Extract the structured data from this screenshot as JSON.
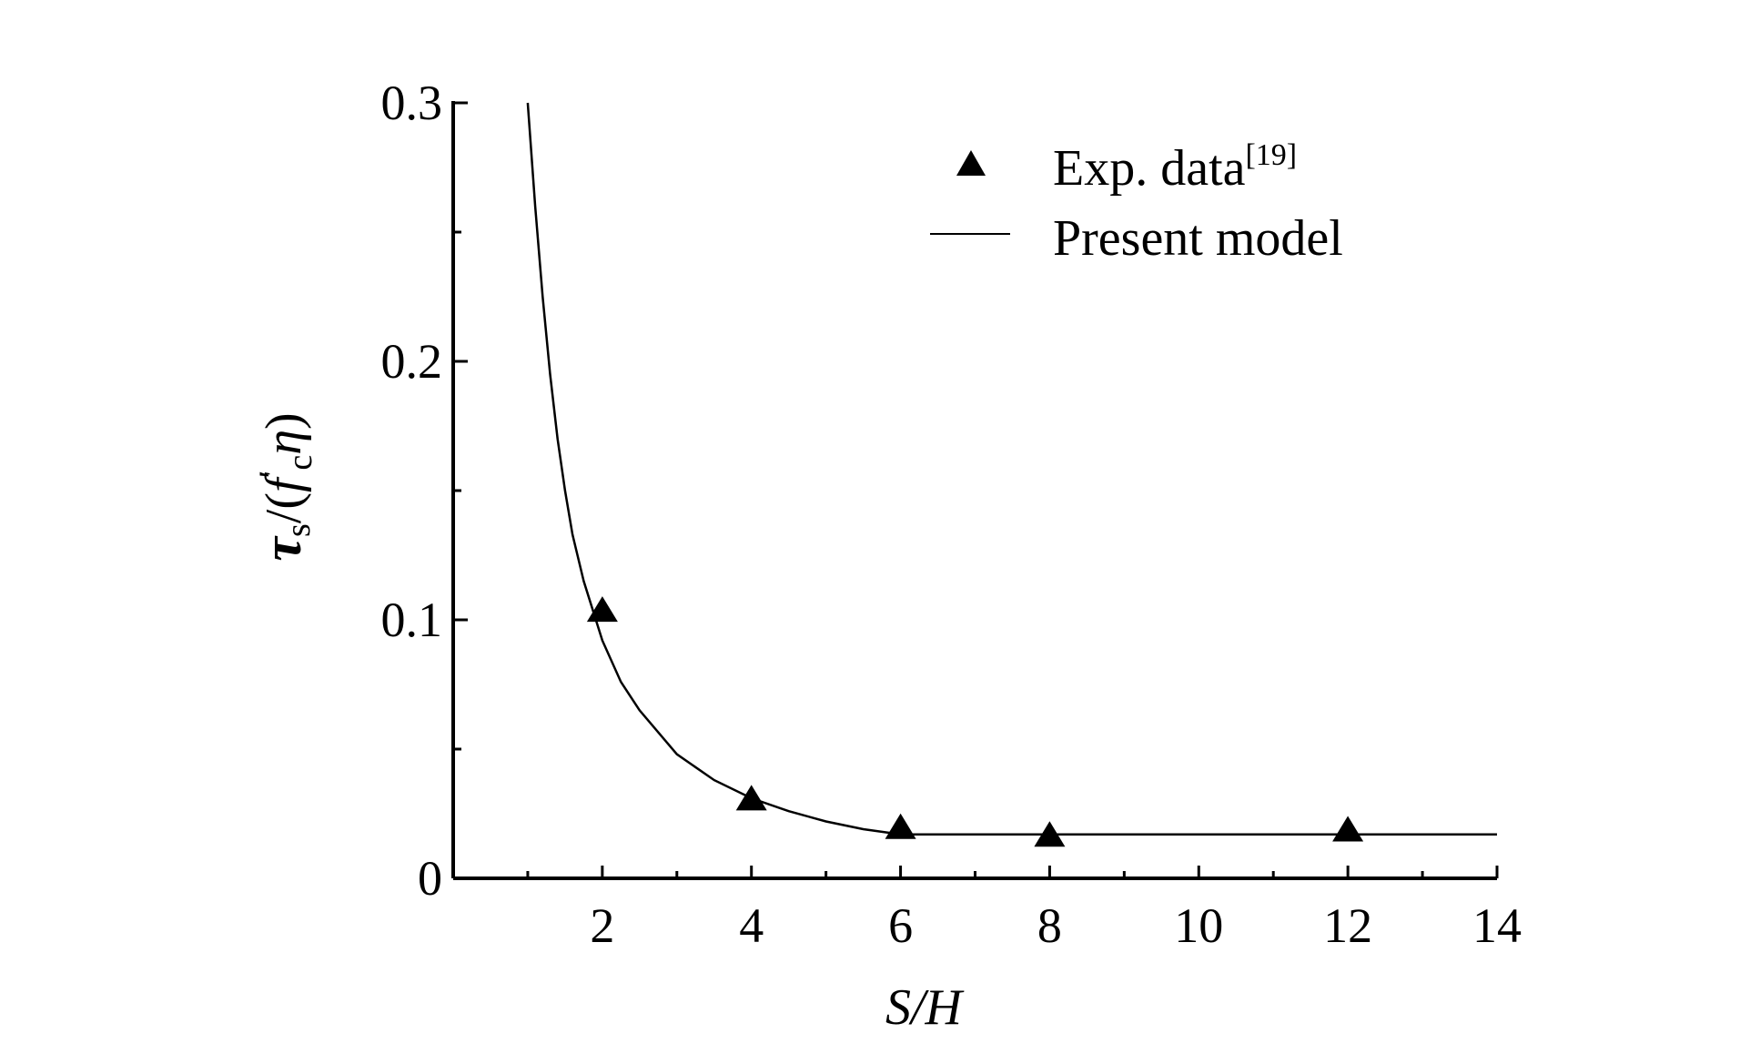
{
  "chart_data": {
    "type": "scatter",
    "title": "",
    "xlabel": "S/H",
    "ylabel": {
      "tau": "τ",
      "tau_sub": "s",
      "open": "/(",
      "f": "f",
      "prime": "′",
      "f_sub": "c",
      "eta": "η",
      "close": ")"
    },
    "xlim": [
      0,
      14
    ],
    "ylim": [
      0,
      0.3
    ],
    "x_ticks": [
      2,
      4,
      6,
      8,
      10,
      12,
      14
    ],
    "x_tick_labels": [
      "2",
      "4",
      "6",
      "8",
      "10",
      "12",
      "14"
    ],
    "x_minor_ticks": [
      1,
      3,
      5,
      7,
      9,
      11,
      13
    ],
    "y_ticks": [
      0,
      0.1,
      0.2,
      0.3
    ],
    "y_tick_labels": [
      "0",
      "0.1",
      "0.2",
      "0.3"
    ],
    "y_minor_ticks": [
      0.05,
      0.15,
      0.25
    ],
    "legend_position": "top-right",
    "grid": false,
    "series": [
      {
        "name": "Exp. data",
        "name_sup": "[19]",
        "kind": "scatter",
        "marker": "triangle",
        "color": "#000000",
        "points": [
          {
            "x": 2,
            "y": 0.103
          },
          {
            "x": 4,
            "y": 0.03
          },
          {
            "x": 6,
            "y": 0.019
          },
          {
            "x": 8,
            "y": 0.016
          },
          {
            "x": 12,
            "y": 0.018
          }
        ]
      },
      {
        "name": "Present model",
        "kind": "line",
        "color": "#000000",
        "points": [
          {
            "x": 1.0,
            "y": 0.3
          },
          {
            "x": 1.1,
            "y": 0.26
          },
          {
            "x": 1.2,
            "y": 0.225
          },
          {
            "x": 1.3,
            "y": 0.195
          },
          {
            "x": 1.4,
            "y": 0.17
          },
          {
            "x": 1.5,
            "y": 0.15
          },
          {
            "x": 1.6,
            "y": 0.133
          },
          {
            "x": 1.75,
            "y": 0.115
          },
          {
            "x": 2.0,
            "y": 0.092
          },
          {
            "x": 2.25,
            "y": 0.076
          },
          {
            "x": 2.5,
            "y": 0.065
          },
          {
            "x": 3.0,
            "y": 0.048
          },
          {
            "x": 3.5,
            "y": 0.038
          },
          {
            "x": 4.0,
            "y": 0.031
          },
          {
            "x": 4.5,
            "y": 0.026
          },
          {
            "x": 5.0,
            "y": 0.022
          },
          {
            "x": 5.5,
            "y": 0.019
          },
          {
            "x": 6.0,
            "y": 0.017
          },
          {
            "x": 8.0,
            "y": 0.017
          },
          {
            "x": 10.0,
            "y": 0.017
          },
          {
            "x": 12.0,
            "y": 0.017
          },
          {
            "x": 14.0,
            "y": 0.017
          }
        ]
      }
    ]
  }
}
